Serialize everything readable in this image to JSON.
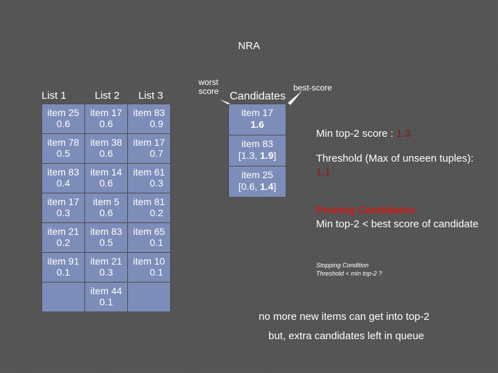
{
  "title": "NRA",
  "lists": {
    "headers": [
      "List 1",
      "List 2",
      "List 3"
    ],
    "rows": [
      [
        {
          "item": "item 25",
          "score": "0.6"
        },
        {
          "item": "item 17",
          "score": "0.6"
        },
        {
          "item": "item 83",
          "score": "0.9"
        }
      ],
      [
        {
          "item": "item 78",
          "score": "0.5"
        },
        {
          "item": "item 38",
          "score": "0.6"
        },
        {
          "item": "item 17",
          "score": "0.7"
        }
      ],
      [
        {
          "item": "item 83",
          "score": "0.4"
        },
        {
          "item": "item 14",
          "score": "0.6"
        },
        {
          "item": "item 61",
          "score": "0.3"
        }
      ],
      [
        {
          "item": "item 17",
          "score": "0.3"
        },
        {
          "item": "item 5",
          "score": "0.6"
        },
        {
          "item": "item 81",
          "score": "0.2"
        }
      ],
      [
        {
          "item": "item 21",
          "score": "0.2"
        },
        {
          "item": "item 83",
          "score": "0.5"
        },
        {
          "item": "item 65",
          "score": "0.1"
        }
      ],
      [
        {
          "item": "item 91",
          "score": "0.1"
        },
        {
          "item": "item 21",
          "score": "0.3"
        },
        {
          "item": "item 10",
          "score": "0.1"
        }
      ],
      [
        null,
        {
          "item": "item 44",
          "score": "0.1"
        },
        null
      ]
    ]
  },
  "candidates": {
    "header": "Candidates",
    "worst_label": "worst score",
    "best_label": "best-score",
    "items": [
      {
        "item": "item 17",
        "line2": "1.6"
      },
      {
        "item": "item 83",
        "line2_pre": "[1.3, ",
        "line2_bold": "1.9",
        "line2_post": "]"
      },
      {
        "item": "item 25",
        "line2_pre": "[0.6, ",
        "line2_bold": "1.4",
        "line2_post": "]"
      }
    ]
  },
  "info": {
    "min_top2_label": "Min top-2 score : ",
    "min_top2_value": "1.3",
    "threshold_label": "Threshold (Max of unseen tuples): ",
    "threshold_value": "1.1",
    "pruning_title": "Pruning Candidates:",
    "pruning_text": "Min top-2 < best score of candidate",
    "stopping_title": "Stopping Condition",
    "stopping_text": "Threshold < min top-2 ?",
    "conclusion1": "no more new items can get into top-2",
    "conclusion2": "but, extra candidates left in queue"
  },
  "colors": {
    "background": "#535453",
    "cell": "#7d8db9",
    "highlight": "#8a1a1a",
    "arrow": "#ffffff"
  }
}
